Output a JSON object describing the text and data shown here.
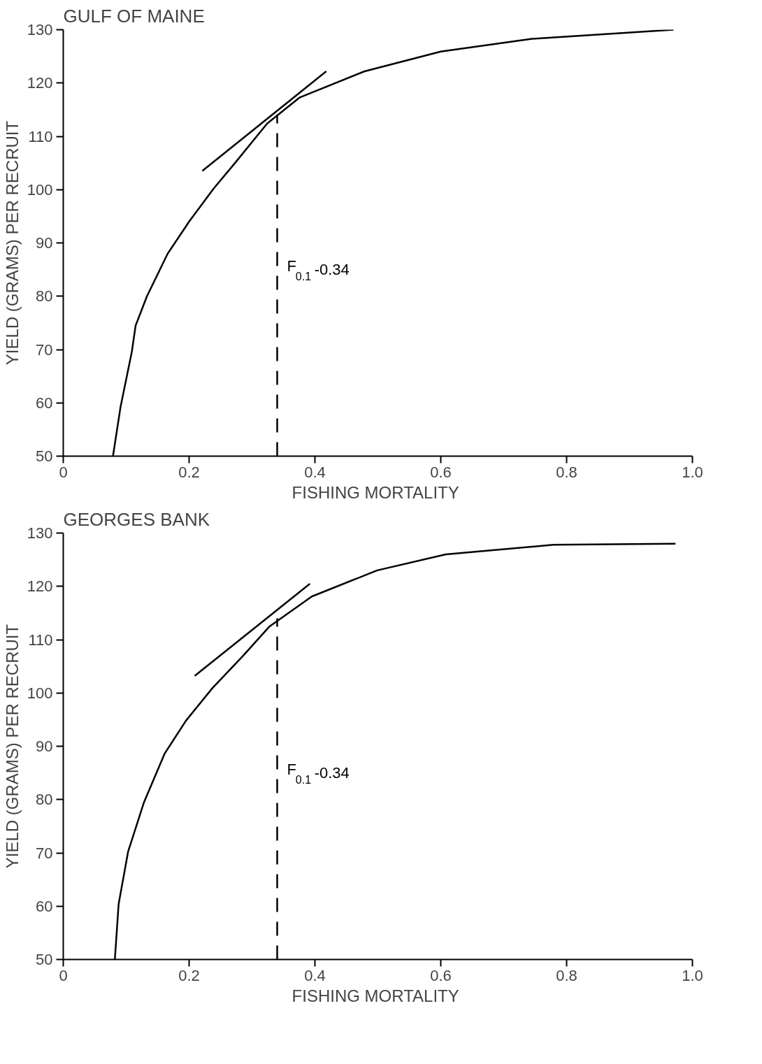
{
  "chart_data": [
    {
      "type": "line",
      "title": "GULF OF MAINE",
      "xlabel": "FISHING  MORTALITY",
      "ylabel": "YIELD (GRAMS) PER RECRUIT",
      "xlim": [
        0,
        1
      ],
      "ylim": [
        50,
        130
      ],
      "xticks": [
        0,
        0.2,
        0.4,
        0.6,
        0.8,
        {
          "value": 1,
          "label": "1.0"
        }
      ],
      "yticks": [
        50,
        60,
        70,
        80,
        90,
        100,
        110,
        120,
        130
      ],
      "grid": false,
      "marker": "none",
      "series": [
        {
          "color": "#000000",
          "line_style": "solid",
          "x": [
            0.079,
            0.091,
            0.109,
            0.115,
            0.133,
            0.166,
            0.2,
            0.239,
            0.273,
            0.324,
            0.376,
            0.479,
            0.6,
            0.745,
            0.97
          ],
          "values": [
            50,
            59.2,
            69.6,
            74.5,
            80,
            88,
            94,
            100.2,
            105,
            112.4,
            117.3,
            122.2,
            125.9,
            128.3,
            130
          ]
        },
        {
          "color": "#000000",
          "line_style": "solid",
          "x": [
            0.221,
            0.418
          ],
          "values": [
            103.5,
            122.2
          ]
        },
        {
          "color": "#000000",
          "line_style": "dashed",
          "x": [
            0.34,
            0.34
          ],
          "values": [
            50,
            114
          ]
        }
      ],
      "annotations": [
        {
          "text": "F$_{0.1}$-0.34",
          "x": 0.34,
          "y": 84
        }
      ]
    },
    {
      "type": "line",
      "title": "GEORGES  BANK",
      "xlabel": "FISHING  MORTALITY",
      "ylabel": "YIELD (GRAMS) PER RECRUIT",
      "xlim": [
        0,
        1
      ],
      "ylim": [
        50,
        130
      ],
      "xticks": [
        0,
        0.2,
        0.4,
        0.6,
        0.8,
        {
          "value": 1,
          "label": "1.0"
        }
      ],
      "yticks": [
        50,
        60,
        70,
        80,
        90,
        100,
        110,
        120,
        130
      ],
      "grid": false,
      "marker": "none",
      "series": [
        {
          "color": "#000000",
          "line_style": "solid",
          "x": [
            0.082,
            0.088,
            0.103,
            0.128,
            0.161,
            0.195,
            0.237,
            0.286,
            0.328,
            0.395,
            0.499,
            0.608,
            0.779,
            0.973
          ],
          "values": [
            50,
            60.4,
            70.2,
            79.4,
            88.6,
            94.8,
            100.9,
            107,
            112.5,
            118.1,
            123,
            126,
            127.8,
            128
          ]
        },
        {
          "color": "#000000",
          "line_style": "solid",
          "x": [
            0.209,
            0.392
          ],
          "values": [
            103.2,
            120.5
          ]
        },
        {
          "color": "#000000",
          "line_style": "dashed",
          "x": [
            0.34,
            0.34
          ],
          "values": [
            50,
            114
          ]
        }
      ],
      "annotations": [
        {
          "text": "F$_{0.1}$-0.34",
          "x": 0.34,
          "y": 84
        }
      ]
    }
  ]
}
